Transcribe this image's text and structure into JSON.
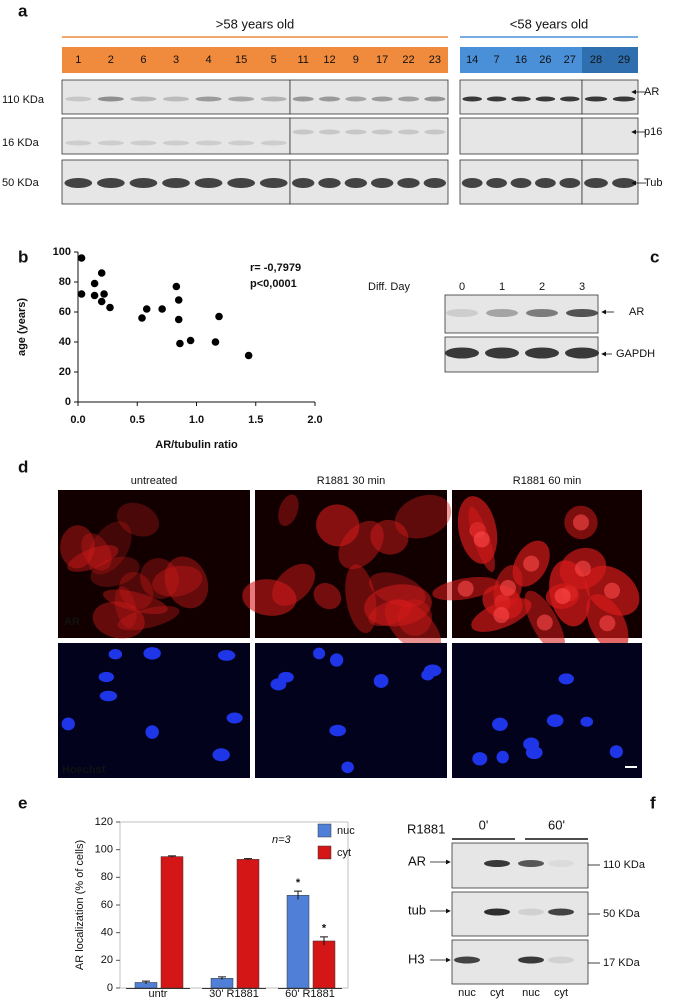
{
  "panel_a": {
    "label": "a",
    "groups": [
      {
        "title": ">58 years old",
        "lanes": [
          "1",
          "2",
          "6",
          "3",
          "4",
          "15",
          "5",
          "11",
          "12",
          "9",
          "17",
          "22",
          "23"
        ]
      },
      {
        "title": "<58 years old",
        "lanes": [
          "14",
          "7",
          "16",
          "26",
          "27",
          "28",
          "29"
        ]
      }
    ],
    "markers": [
      "110 KDa",
      "16 KDa",
      "50 KDa"
    ],
    "proteins": [
      "AR",
      "p16",
      "Tub"
    ]
  },
  "chart_data": [
    {
      "type": "scatter",
      "panel_label": "b",
      "x_label": "AR/tubulin ratio",
      "y_label": "age (years)",
      "annotations": [
        "r= -0,7979",
        "p<0,0001"
      ],
      "x": [
        0.03,
        0.03,
        0.14,
        0.14,
        0.2,
        0.2,
        0.22,
        0.27,
        0.54,
        0.58,
        0.71,
        0.83,
        0.85,
        0.85,
        0.86,
        0.95,
        1.19,
        1.16,
        1.44
      ],
      "values": [
        96,
        72,
        79,
        71,
        67,
        86,
        72,
        63,
        56,
        62,
        62,
        77,
        68,
        55,
        39,
        41,
        57,
        40,
        31
      ],
      "color": "#000000",
      "xlim": [
        0,
        2
      ],
      "xticks": [
        {
          "value": 0,
          "label": "0.0"
        },
        {
          "value": 0.5,
          "label": "0.5"
        },
        {
          "value": 1,
          "label": "1.0"
        },
        {
          "value": 1.5,
          "label": "1.5"
        },
        {
          "value": 2,
          "label": "2.0"
        }
      ],
      "ylim": [
        0,
        100
      ],
      "yticks": [
        0,
        20,
        40,
        60,
        80,
        100
      ]
    },
    {
      "type": "bar",
      "panel_label": "e",
      "y_label": "AR localization (% of cells)",
      "annotations": [
        "n=3"
      ],
      "categories": [
        "untr",
        "30' R1881",
        "60' R1881"
      ],
      "series": [
        {
          "name": "nuc",
          "color": "#4f7fd6",
          "values": [
            4,
            7,
            67
          ],
          "errors": [
            1,
            1,
            3
          ],
          "significance": [
            null,
            null,
            "*"
          ]
        },
        {
          "name": "cyt",
          "color": "#d41616",
          "values": [
            95,
            93,
            34
          ],
          "errors": [
            0.5,
            0.5,
            3
          ],
          "significance": [
            null,
            null,
            "*"
          ]
        }
      ],
      "ylim": [
        0,
        120
      ],
      "yticks": [
        0,
        20,
        40,
        60,
        80,
        100,
        120
      ]
    }
  ],
  "panel_c": {
    "label": "c",
    "lane_title": "Diff. Day",
    "lanes": [
      "0",
      "1",
      "2",
      "3"
    ],
    "proteins": [
      "AR",
      "GAPDH"
    ]
  },
  "panel_d": {
    "label": "d",
    "conditions": [
      "untreated",
      "R1881 30 min",
      "R1881 60 min"
    ],
    "stains": [
      "AR",
      "Hoechst"
    ]
  },
  "panel_f": {
    "label": "f",
    "treatment": "R1881",
    "times": [
      "0'",
      "60'"
    ],
    "proteins": [
      "AR",
      "tub",
      "H3"
    ],
    "markers": [
      "110 KDa",
      "50 KDa",
      "17 KDa"
    ],
    "lanes": [
      "nuc",
      "cyt",
      "nuc",
      "cyt"
    ]
  }
}
